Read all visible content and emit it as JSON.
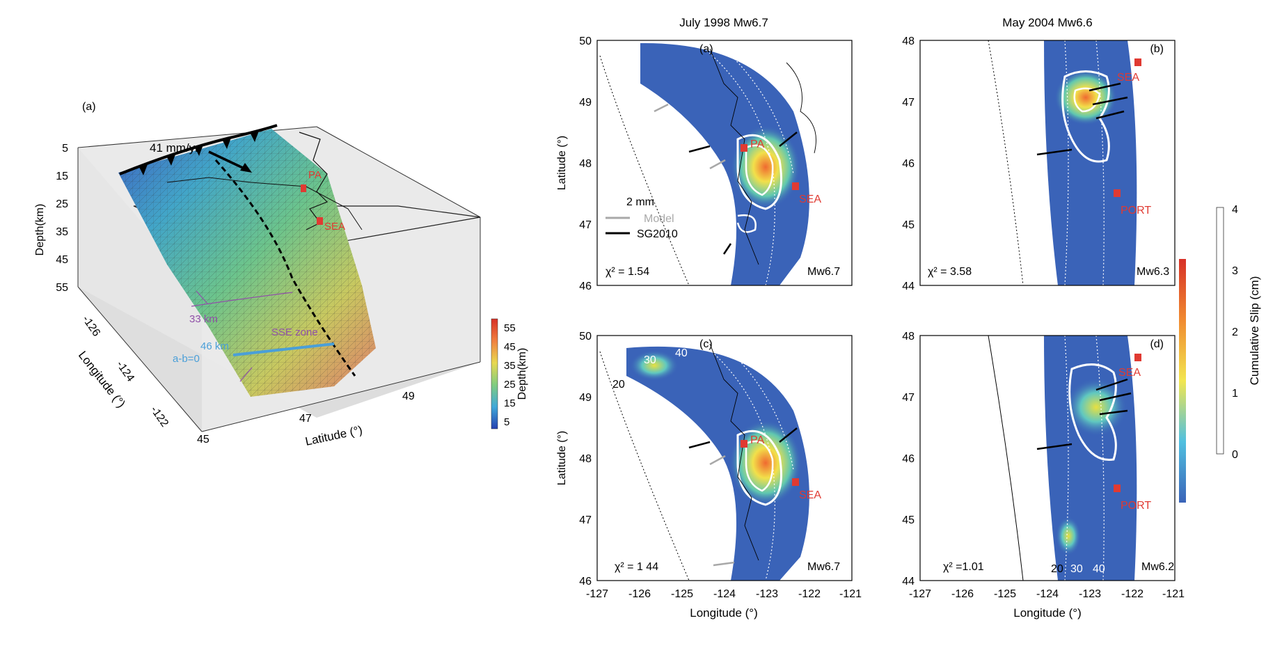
{
  "left": {
    "panel_label": "(a)",
    "rate": "41 mm/yr",
    "depth_axis_label": "Depth(km)",
    "depth_ticks": [
      "5",
      "15",
      "25",
      "35",
      "45",
      "55"
    ],
    "lon_axis_label": "Longitude (°)",
    "lon_ticks": [
      "-126",
      "-124",
      "-122"
    ],
    "lat_axis_label": "Latitude (°)",
    "lat_ticks": [
      "45",
      "47",
      "49"
    ],
    "city_pa": "PA",
    "city_sea": "SEA",
    "contour_33": "33 km",
    "contour_46": "46 km",
    "ab0": "a-b=0",
    "sse_zone": "SSE zone",
    "colorbar_label": "Depth(km)",
    "colorbar_ticks": [
      "55",
      "45",
      "35",
      "25",
      "15",
      "5"
    ]
  },
  "columns": {
    "col1_title": "July 1998  Mw6.7",
    "col2_title": "May 2004   Mw6.6"
  },
  "panels": [
    {
      "label": "(a)",
      "chi": "χ² = 1.54",
      "mw": "Mw6.7",
      "ylim": [
        46,
        50
      ],
      "yticks": [
        "50",
        "49",
        "48",
        "47",
        "46"
      ]
    },
    {
      "label": "(b)",
      "chi": "χ² = 3.58",
      "mw": "Mw6.3",
      "ylim": [
        44,
        48
      ],
      "yticks": [
        "48",
        "47",
        "46",
        "45",
        "44"
      ]
    },
    {
      "label": "(c)",
      "chi": "χ² = 1 44",
      "mw": "Mw6.7",
      "ylim": [
        46,
        50
      ],
      "yticks": [
        "50",
        "49",
        "48",
        "47",
        "46"
      ]
    },
    {
      "label": "(d)",
      "chi": "χ² =1.01",
      "mw": "Mw6.2",
      "ylim": [
        44,
        48
      ],
      "yticks": [
        "48",
        "47",
        "46",
        "45",
        "44"
      ]
    }
  ],
  "map_labels": {
    "lat_axis": "Latitude (°)",
    "lon_axis": "Longitude (°)",
    "lon_ticks": [
      "-127",
      "-126",
      "-125",
      "-124",
      "-123",
      "-122",
      "-121"
    ],
    "pa": "PA",
    "sea": "SEA",
    "port": "PORT",
    "legend_scale": "2 mm",
    "legend_model": "Model",
    "legend_obs": "SG2010",
    "contours_c": [
      "30",
      "40",
      "20"
    ],
    "contours_d": [
      "20",
      "30",
      "40"
    ]
  },
  "slip_colorbar": {
    "label": "Cumulative Slip (cm)",
    "ticks": [
      "4",
      "3",
      "2",
      "1",
      "0"
    ]
  },
  "colors": {
    "city": "#e03a32",
    "slip_bg": "#3a63b8",
    "ab_line": "#4a9fd8",
    "contour_purple": "#9050a8"
  }
}
